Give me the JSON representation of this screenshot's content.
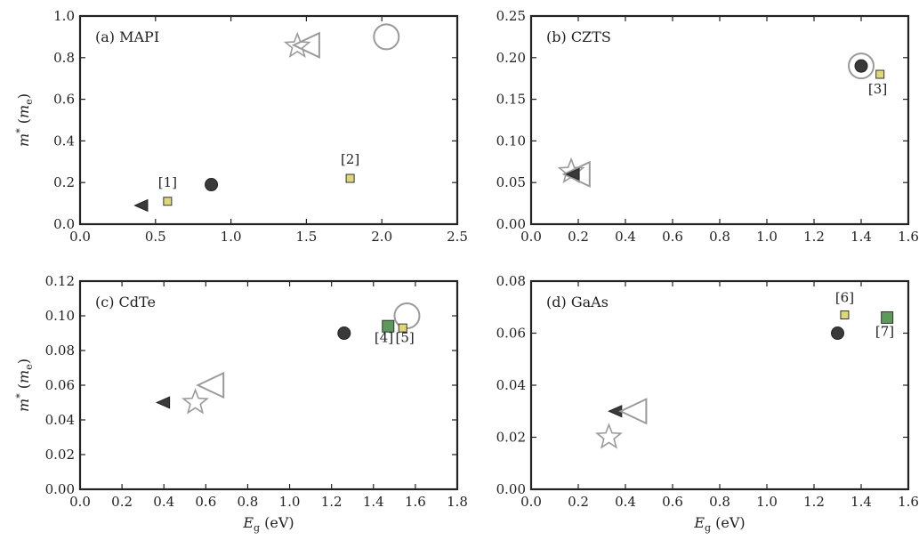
{
  "chart_data": [
    {
      "type": "scatter",
      "panel_label": "(a) MAPI",
      "xlim": [
        0,
        2.5
      ],
      "ylim": [
        0,
        1.0
      ],
      "xticks": [
        0.0,
        0.5,
        1.0,
        1.5,
        2.0,
        2.5
      ],
      "xtick_labels": [
        "0.0",
        "0.5",
        "1.0",
        "1.5",
        "2.0",
        "2.5"
      ],
      "yticks": [
        0.0,
        0.2,
        0.4,
        0.6,
        0.8,
        1.0
      ],
      "ytick_labels": [
        "0.0",
        "0.2",
        "0.4",
        "0.6",
        "0.8",
        "1.0"
      ],
      "ylabel": "m* (m_e)",
      "xlabel": "",
      "points": [
        {
          "marker": "triangle-left-filled",
          "x": 0.41,
          "y": 0.09
        },
        {
          "marker": "square-yellow",
          "x": 0.58,
          "y": 0.11
        },
        {
          "marker": "circle-filled",
          "x": 0.87,
          "y": 0.19
        },
        {
          "marker": "square-yellow",
          "x": 1.79,
          "y": 0.22
        },
        {
          "marker": "star-open",
          "x": 1.44,
          "y": 0.855
        },
        {
          "marker": "triangle-left-open",
          "x": 1.51,
          "y": 0.86
        },
        {
          "marker": "circle-open",
          "x": 2.03,
          "y": 0.9
        }
      ],
      "annotations": [
        {
          "text": "[1]",
          "x": 0.58,
          "y": 0.18
        },
        {
          "text": "[2]",
          "x": 1.79,
          "y": 0.29
        }
      ]
    },
    {
      "type": "scatter",
      "panel_label": "(b) CZTS",
      "xlim": [
        0,
        1.6
      ],
      "ylim": [
        0,
        0.25
      ],
      "xticks": [
        0.0,
        0.2,
        0.4,
        0.6,
        0.8,
        1.0,
        1.2,
        1.4,
        1.6
      ],
      "xtick_labels": [
        "0.0",
        "0.2",
        "0.4",
        "0.6",
        "0.8",
        "1.0",
        "1.2",
        "1.4",
        "1.6"
      ],
      "yticks": [
        0.0,
        0.05,
        0.1,
        0.15,
        0.2,
        0.25
      ],
      "ytick_labels": [
        "0.00",
        "0.05",
        "0.10",
        "0.15",
        "0.20",
        "0.25"
      ],
      "ylabel": "",
      "xlabel": "",
      "points": [
        {
          "marker": "triangle-left-open",
          "x": 0.2,
          "y": 0.06
        },
        {
          "marker": "star-open",
          "x": 0.17,
          "y": 0.063
        },
        {
          "marker": "triangle-left-filled",
          "x": 0.18,
          "y": 0.06
        },
        {
          "marker": "circle-open",
          "x": 1.4,
          "y": 0.19
        },
        {
          "marker": "circle-filled",
          "x": 1.4,
          "y": 0.19
        },
        {
          "marker": "square-yellow",
          "x": 1.48,
          "y": 0.18
        }
      ],
      "annotations": [
        {
          "text": "[3]",
          "x": 1.47,
          "y": 0.157
        }
      ]
    },
    {
      "type": "scatter",
      "panel_label": "(c) CdTe",
      "xlim": [
        0,
        1.8
      ],
      "ylim": [
        0,
        0.12
      ],
      "xticks": [
        0.0,
        0.2,
        0.4,
        0.6,
        0.8,
        1.0,
        1.2,
        1.4,
        1.6,
        1.8
      ],
      "xtick_labels": [
        "0.0",
        "0.2",
        "0.4",
        "0.6",
        "0.8",
        "1.0",
        "1.2",
        "1.4",
        "1.6",
        "1.8"
      ],
      "yticks": [
        0.0,
        0.02,
        0.04,
        0.06,
        0.08,
        0.1,
        0.12
      ],
      "ytick_labels": [
        "0.00",
        "0.02",
        "0.04",
        "0.06",
        "0.08",
        "0.10",
        "0.12"
      ],
      "ylabel": "m* (m_e)",
      "xlabel": "E_g (eV)",
      "points": [
        {
          "marker": "triangle-left-filled",
          "x": 0.4,
          "y": 0.05
        },
        {
          "marker": "star-open",
          "x": 0.55,
          "y": 0.05
        },
        {
          "marker": "triangle-left-open",
          "x": 0.63,
          "y": 0.06
        },
        {
          "marker": "circle-filled",
          "x": 1.26,
          "y": 0.09
        },
        {
          "marker": "square-green",
          "x": 1.47,
          "y": 0.094
        },
        {
          "marker": "circle-open",
          "x": 1.56,
          "y": 0.1
        },
        {
          "marker": "square-yellow",
          "x": 1.54,
          "y": 0.093
        }
      ],
      "annotations": [
        {
          "text": "[4]",
          "x": 1.45,
          "y": 0.085
        },
        {
          "text": "[5]",
          "x": 1.55,
          "y": 0.085
        }
      ]
    },
    {
      "type": "scatter",
      "panel_label": "(d) GaAs",
      "xlim": [
        0,
        1.6
      ],
      "ylim": [
        0,
        0.08
      ],
      "xticks": [
        0.0,
        0.2,
        0.4,
        0.6,
        0.8,
        1.0,
        1.2,
        1.4,
        1.6
      ],
      "xtick_labels": [
        "0.0",
        "0.2",
        "0.4",
        "0.6",
        "0.8",
        "1.0",
        "1.2",
        "1.4",
        "1.6"
      ],
      "yticks": [
        0.0,
        0.02,
        0.04,
        0.06,
        0.08
      ],
      "ytick_labels": [
        "0.00",
        "0.02",
        "0.04",
        "0.06",
        "0.08"
      ],
      "ylabel": "",
      "xlabel": "E_g (eV)",
      "points": [
        {
          "marker": "star-open",
          "x": 0.33,
          "y": 0.02
        },
        {
          "marker": "triangle-left-filled",
          "x": 0.36,
          "y": 0.03
        },
        {
          "marker": "triangle-left-open",
          "x": 0.44,
          "y": 0.03
        },
        {
          "marker": "circle-filled",
          "x": 1.3,
          "y": 0.06
        },
        {
          "marker": "square-yellow",
          "x": 1.33,
          "y": 0.067
        },
        {
          "marker": "square-green",
          "x": 1.51,
          "y": 0.066
        }
      ],
      "annotations": [
        {
          "text": "[6]",
          "x": 1.33,
          "y": 0.072
        },
        {
          "text": "[7]",
          "x": 1.5,
          "y": 0.059
        }
      ]
    }
  ],
  "colors": {
    "axes": "#222222",
    "filled_marker": "#3a3a3a",
    "open_marker": "#9a9a9a",
    "square_yellow": "#e0d67a",
    "square_green": "#5c9a5c"
  }
}
